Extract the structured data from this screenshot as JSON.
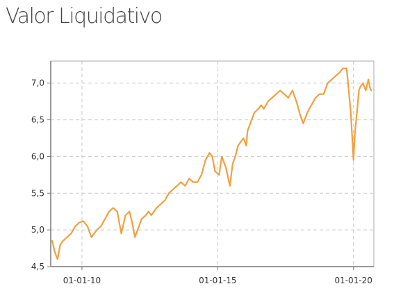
{
  "page": {
    "title": "Valor Liquidativo"
  },
  "chart_data": {
    "type": "line",
    "title": "Valor Liquidativo",
    "xlabel": "",
    "ylabel": "",
    "ylim": [
      4.5,
      7.3
    ],
    "yticks": [
      4.5,
      5.0,
      5.5,
      6.0,
      6.5,
      7.0
    ],
    "ytick_labels": [
      "4,5",
      "5,0",
      "5,5",
      "6,0",
      "6,5",
      "7,0"
    ],
    "xlim": [
      2008.85,
      2020.75
    ],
    "xticks": [
      2010.0,
      2015.0,
      2020.0
    ],
    "xtick_labels": [
      "01-01-10",
      "01-01-15",
      "01-01-20"
    ],
    "grid": true,
    "line_color": "#F0A040",
    "series": [
      {
        "x": [
          2008.9,
          2009.0,
          2009.1,
          2009.2,
          2009.3,
          2009.45,
          2009.6,
          2009.75,
          2009.9,
          2010.05,
          2010.2,
          2010.35,
          2010.45,
          2010.55,
          2010.7,
          2010.85,
          2011.0,
          2011.15,
          2011.3,
          2011.45,
          2011.6,
          2011.75,
          2011.85,
          2011.95,
          2012.1,
          2012.2,
          2012.35,
          2012.45,
          2012.55,
          2012.65,
          2012.75,
          2012.9,
          2013.05,
          2013.2,
          2013.35,
          2013.5,
          2013.65,
          2013.8,
          2013.95,
          2014.1,
          2014.25,
          2014.4,
          2014.55,
          2014.7,
          2014.8,
          2014.9,
          2015.05,
          2015.15,
          2015.3,
          2015.45,
          2015.55,
          2015.65,
          2015.75,
          2015.85,
          2015.95,
          2016.05,
          2016.1,
          2016.2,
          2016.35,
          2016.5,
          2016.6,
          2016.7,
          2016.85,
          2017.0,
          2017.15,
          2017.3,
          2017.45,
          2017.6,
          2017.75,
          2017.9,
          2018.05,
          2018.15,
          2018.3,
          2018.45,
          2018.6,
          2018.75,
          2018.9,
          2018.95,
          2019.05,
          2019.2,
          2019.35,
          2019.5,
          2019.6,
          2019.75,
          2019.9,
          2020.0,
          2020.05,
          2020.1,
          2020.15,
          2020.2,
          2020.25,
          2020.35,
          2020.45,
          2020.55,
          2020.6,
          2020.65
        ],
        "values": [
          4.85,
          4.7,
          4.6,
          4.8,
          4.85,
          4.9,
          4.95,
          5.05,
          5.1,
          5.12,
          5.05,
          4.9,
          4.95,
          5.0,
          5.05,
          5.15,
          5.25,
          5.3,
          5.25,
          4.95,
          5.2,
          5.25,
          5.1,
          4.9,
          5.05,
          5.15,
          5.2,
          5.25,
          5.2,
          5.25,
          5.3,
          5.35,
          5.4,
          5.5,
          5.55,
          5.6,
          5.65,
          5.6,
          5.7,
          5.65,
          5.65,
          5.75,
          5.95,
          6.05,
          6.0,
          5.8,
          5.75,
          6.0,
          5.85,
          5.6,
          5.9,
          6.0,
          6.15,
          6.2,
          6.25,
          6.15,
          6.35,
          6.45,
          6.6,
          6.65,
          6.7,
          6.65,
          6.75,
          6.8,
          6.85,
          6.9,
          6.85,
          6.8,
          6.9,
          6.75,
          6.55,
          6.45,
          6.6,
          6.7,
          6.8,
          6.85,
          6.85,
          6.9,
          7.0,
          7.05,
          7.1,
          7.15,
          7.2,
          7.2,
          6.6,
          5.95,
          6.3,
          6.5,
          6.7,
          6.9,
          6.95,
          7.0,
          6.9,
          7.05,
          6.95,
          6.9
        ]
      }
    ]
  }
}
